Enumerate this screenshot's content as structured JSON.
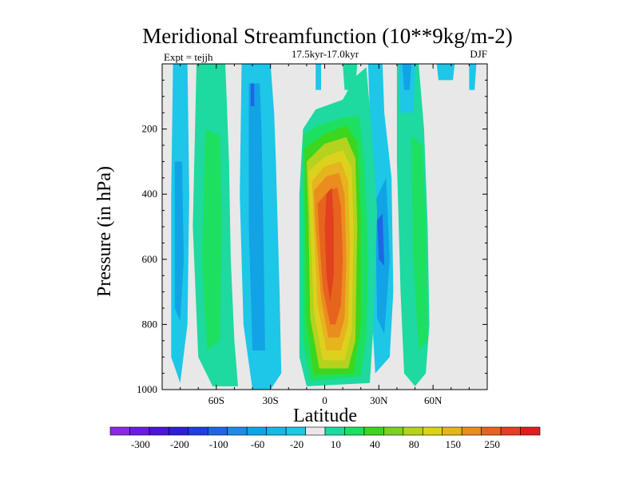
{
  "chart_data": {
    "type": "contour",
    "title": "Meridional Streamfunction (10**9kg/m-2)",
    "left_label": "Expt = tejjh",
    "center_label": "17.5kyr-17.0kyr",
    "right_label": "DJF",
    "xlabel": "Latitude",
    "ylabel": "Pressure (in hPa)",
    "xlim": [
      -90,
      90
    ],
    "ylim": [
      1000,
      0
    ],
    "x_ticks": [
      {
        "value": -60,
        "label": "60S"
      },
      {
        "value": -30,
        "label": "30S"
      },
      {
        "value": 0,
        "label": "0"
      },
      {
        "value": 30,
        "label": "30N"
      },
      {
        "value": 60,
        "label": "60N"
      }
    ],
    "y_ticks": [
      {
        "value": 200,
        "label": "200"
      },
      {
        "value": 400,
        "label": "400"
      },
      {
        "value": 600,
        "label": "600"
      },
      {
        "value": 800,
        "label": "800"
      },
      {
        "value": 1000,
        "label": "1000"
      }
    ],
    "background_color": "#e8e8e8",
    "colorbar": {
      "colors": [
        "#8a2be2",
        "#6a1de0",
        "#4b14d6",
        "#2e1ed4",
        "#1f3ee0",
        "#1e66e6",
        "#1e8be8",
        "#11a3e6",
        "#18b7e8",
        "#1ec6e8",
        "#e8e8e8",
        "#1ed9a0",
        "#1ee060",
        "#3cd61e",
        "#7ad21e",
        "#b4d21e",
        "#dcd21e",
        "#e6b41e",
        "#ea8c1e",
        "#e6641e",
        "#e2401e",
        "#de1e1e"
      ],
      "labels": [
        {
          "boundary": 1,
          "label": "-300"
        },
        {
          "boundary": 3,
          "label": "-200"
        },
        {
          "boundary": 5,
          "label": "-100"
        },
        {
          "boundary": 7,
          "label": "-60"
        },
        {
          "boundary": 9,
          "label": "-20"
        },
        {
          "boundary": 11,
          "label": "10"
        },
        {
          "boundary": 13,
          "label": "40"
        },
        {
          "boundary": 15,
          "label": "80"
        },
        {
          "boundary": 17,
          "label": "150"
        },
        {
          "boundary": 19,
          "label": "250"
        }
      ]
    },
    "regions": [
      {
        "name": "region-sh-west-outer",
        "level": -20,
        "pts": [
          [
            -84,
            0
          ],
          [
            -76,
            0
          ],
          [
            -75,
            400
          ],
          [
            -76,
            800
          ],
          [
            -80,
            980
          ],
          [
            -85,
            900
          ],
          [
            -85,
            400
          ]
        ]
      },
      {
        "name": "region-sh-west-inner",
        "level": -60,
        "pts": [
          [
            -83,
            300
          ],
          [
            -79,
            300
          ],
          [
            -78,
            600
          ],
          [
            -80,
            790
          ],
          [
            -83,
            750
          ]
        ]
      },
      {
        "name": "region-sh-west-mid",
        "level": 10,
        "pts": [
          [
            -71,
            0
          ],
          [
            -55,
            0
          ],
          [
            -53,
            300
          ],
          [
            -52,
            600
          ],
          [
            -50,
            850
          ],
          [
            -48,
            990
          ],
          [
            -62,
            990
          ],
          [
            -70,
            900
          ],
          [
            -73,
            500
          ]
        ]
      },
      {
        "name": "region-sh-west-mid-green",
        "level": 40,
        "pts": [
          [
            -66,
            200
          ],
          [
            -58,
            220
          ],
          [
            -57,
            500
          ],
          [
            -58,
            850
          ],
          [
            -65,
            880
          ],
          [
            -68,
            600
          ]
        ]
      },
      {
        "name": "region-sh-mid-outer",
        "level": -20,
        "pts": [
          [
            -46,
            0
          ],
          [
            -30,
            0
          ],
          [
            -28,
            150
          ],
          [
            -27,
            300
          ],
          [
            -25,
            700
          ],
          [
            -24,
            950
          ],
          [
            -30,
            1000
          ],
          [
            -40,
            1000
          ],
          [
            -45,
            800
          ],
          [
            -47,
            400
          ]
        ]
      },
      {
        "name": "region-sh-mid-inner",
        "level": -60,
        "pts": [
          [
            -42,
            60
          ],
          [
            -36,
            60
          ],
          [
            -35,
            200
          ],
          [
            -34,
            500
          ],
          [
            -33,
            880
          ],
          [
            -40,
            880
          ],
          [
            -42,
            500
          ]
        ]
      },
      {
        "name": "region-sh-mid-deep",
        "level": -100,
        "pts": [
          [
            -41,
            60
          ],
          [
            -39,
            60
          ],
          [
            -39,
            130
          ],
          [
            -41,
            130
          ]
        ]
      },
      {
        "name": "region-eq-top-outer",
        "level": -20,
        "pts": [
          [
            -5,
            0
          ],
          [
            -2,
            0
          ],
          [
            -2,
            80
          ],
          [
            -5,
            80
          ]
        ]
      },
      {
        "name": "region-eq-top-left",
        "level": 10,
        "pts": [
          [
            10,
            0
          ],
          [
            18,
            0
          ],
          [
            17,
            80
          ],
          [
            11,
            80
          ]
        ]
      },
      {
        "name": "region-nh-mid-outer",
        "level": -20,
        "pts": [
          [
            24,
            0
          ],
          [
            32,
            0
          ],
          [
            33,
            150
          ],
          [
            37,
            350
          ],
          [
            38,
            700
          ],
          [
            36,
            900
          ],
          [
            28,
            950
          ],
          [
            25,
            650
          ],
          [
            26,
            300
          ]
        ]
      },
      {
        "name": "region-nh-mid-inner",
        "level": -60,
        "pts": [
          [
            28,
            420
          ],
          [
            34,
            350
          ],
          [
            36,
            600
          ],
          [
            33,
            830
          ],
          [
            29,
            780
          ]
        ]
      },
      {
        "name": "region-nh-mid-deep",
        "level": -100,
        "pts": [
          [
            29,
            480
          ],
          [
            32,
            460
          ],
          [
            33,
            620
          ],
          [
            30,
            600
          ]
        ]
      },
      {
        "name": "region-nh-east-outer",
        "level": 10,
        "pts": [
          [
            40,
            0
          ],
          [
            52,
            0
          ],
          [
            55,
            200
          ],
          [
            57,
            500
          ],
          [
            58,
            800
          ],
          [
            56,
            950
          ],
          [
            50,
            990
          ],
          [
            44,
            950
          ],
          [
            42,
            700
          ],
          [
            40,
            300
          ]
        ]
      },
      {
        "name": "region-nh-east-inner",
        "level": 40,
        "pts": [
          [
            48,
            220
          ],
          [
            54,
            250
          ],
          [
            56,
            500
          ],
          [
            57,
            850
          ],
          [
            52,
            880
          ],
          [
            49,
            600
          ]
        ]
      },
      {
        "name": "region-nh-top-blue",
        "level": -20,
        "pts": [
          [
            41,
            0
          ],
          [
            50,
            0
          ],
          [
            49,
            150
          ],
          [
            42,
            150
          ]
        ]
      },
      {
        "name": "region-nh-top-blue2",
        "level": -60,
        "pts": [
          [
            43,
            0
          ],
          [
            48,
            0
          ],
          [
            47,
            80
          ],
          [
            44,
            80
          ]
        ]
      },
      {
        "name": "region-nh-far-east",
        "level": -20,
        "pts": [
          [
            62,
            0
          ],
          [
            72,
            0
          ],
          [
            71,
            50
          ],
          [
            63,
            50
          ]
        ]
      },
      {
        "name": "region-nh-far-east2",
        "level": -20,
        "pts": [
          [
            80,
            0
          ],
          [
            84,
            0
          ],
          [
            83,
            80
          ],
          [
            80,
            80
          ]
        ]
      },
      {
        "name": "region-hadley-10",
        "level": 10,
        "pts": [
          [
            -12,
            200
          ],
          [
            -5,
            140
          ],
          [
            10,
            110
          ],
          [
            17,
            40
          ],
          [
            23,
            10
          ],
          [
            26,
            200
          ],
          [
            29,
            450
          ],
          [
            27,
            800
          ],
          [
            25,
            980
          ],
          [
            -10,
            990
          ],
          [
            -14,
            900
          ],
          [
            -14,
            400
          ]
        ]
      },
      {
        "name": "region-hadley-40",
        "level": 40,
        "pts": [
          [
            -12,
            220
          ],
          [
            -4,
            190
          ],
          [
            10,
            165
          ],
          [
            19,
            160
          ],
          [
            22,
            300
          ],
          [
            24,
            600
          ],
          [
            23,
            850
          ],
          [
            20,
            960
          ],
          [
            -8,
            975
          ],
          [
            -12,
            850
          ],
          [
            -12,
            400
          ]
        ]
      },
      {
        "name": "region-hadley-60",
        "level": 60,
        "pts": [
          [
            -11,
            260
          ],
          [
            0,
            215
          ],
          [
            12,
            190
          ],
          [
            18,
            240
          ],
          [
            20,
            450
          ],
          [
            20,
            800
          ],
          [
            16,
            950
          ],
          [
            -6,
            955
          ],
          [
            -10,
            800
          ],
          [
            -11,
            450
          ]
        ]
      },
      {
        "name": "region-hadley-80",
        "level": 80,
        "pts": [
          [
            -10,
            300
          ],
          [
            0,
            245
          ],
          [
            12,
            225
          ],
          [
            17,
            290
          ],
          [
            18,
            500
          ],
          [
            17,
            850
          ],
          [
            13,
            935
          ],
          [
            -3,
            935
          ],
          [
            -8,
            780
          ],
          [
            -9,
            470
          ]
        ]
      },
      {
        "name": "region-hadley-100",
        "level": 100,
        "pts": [
          [
            -9,
            330
          ],
          [
            0,
            285
          ],
          [
            10,
            265
          ],
          [
            15,
            320
          ],
          [
            16,
            520
          ],
          [
            15,
            820
          ],
          [
            11,
            910
          ],
          [
            -1,
            910
          ],
          [
            -6,
            760
          ],
          [
            -8,
            480
          ]
        ]
      },
      {
        "name": "region-hadley-150",
        "level": 150,
        "pts": [
          [
            -7,
            360
          ],
          [
            0,
            315
          ],
          [
            9,
            300
          ],
          [
            13,
            360
          ],
          [
            14,
            560
          ],
          [
            13,
            800
          ],
          [
            9,
            880
          ],
          [
            1,
            880
          ],
          [
            -4,
            740
          ],
          [
            -6,
            500
          ]
        ]
      },
      {
        "name": "region-hadley-200",
        "level": 200,
        "pts": [
          [
            -6,
            390
          ],
          [
            1,
            345
          ],
          [
            8,
            335
          ],
          [
            11,
            400
          ],
          [
            12,
            600
          ],
          [
            11,
            780
          ],
          [
            8,
            840
          ],
          [
            2,
            840
          ],
          [
            -2,
            720
          ],
          [
            -5,
            510
          ]
        ]
      },
      {
        "name": "region-hadley-250",
        "level": 250,
        "pts": [
          [
            -4,
            430
          ],
          [
            2,
            390
          ],
          [
            7,
            380
          ],
          [
            9,
            440
          ],
          [
            10,
            600
          ],
          [
            9,
            740
          ],
          [
            6,
            800
          ],
          [
            3,
            800
          ],
          [
            -1,
            690
          ],
          [
            -3,
            530
          ]
        ]
      },
      {
        "name": "region-hadley-300",
        "level": 300,
        "pts": [
          [
            1,
            400
          ],
          [
            4,
            380
          ],
          [
            5,
            480
          ],
          [
            5,
            650
          ],
          [
            3,
            730
          ],
          [
            1,
            650
          ],
          [
            0,
            500
          ]
        ]
      }
    ]
  }
}
